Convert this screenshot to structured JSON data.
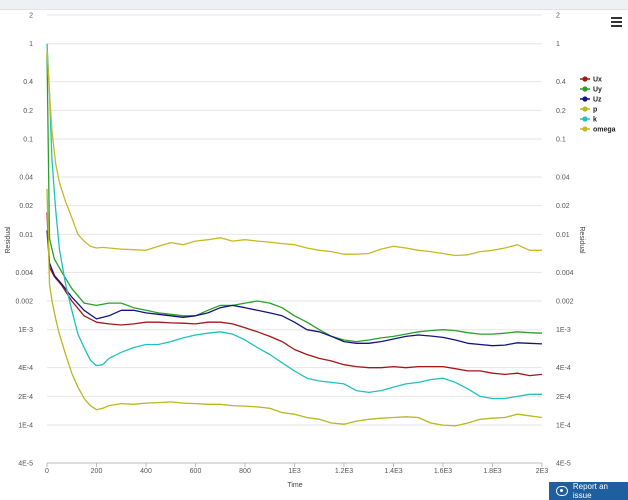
{
  "chart_data": {
    "type": "line",
    "title": "",
    "xlabel": "Time",
    "ylabel": "Residual",
    "ylabel_right": "Residual",
    "y_scale": "log",
    "xlim": [
      0,
      2000
    ],
    "ylim": [
      4e-05,
      2
    ],
    "x_ticks": [
      0,
      200,
      400,
      600,
      800,
      1000,
      1200,
      1400,
      1600,
      1800,
      2000
    ],
    "x_tick_labels": [
      "0",
      "200",
      "400",
      "600",
      "800",
      "1E3",
      "1.2E3",
      "1.4E3",
      "1.6E3",
      "1.8E3",
      "2E3"
    ],
    "y_ticks": [
      2,
      1,
      0.4,
      0.2,
      0.1,
      0.04,
      0.02,
      0.01,
      0.004,
      0.002,
      0.001,
      0.0004,
      0.0002,
      0.0001,
      4e-05
    ],
    "y_tick_labels": [
      "2",
      "1",
      "0.4",
      "0.2",
      "0.1",
      "0.04",
      "0.02",
      "0.01",
      "0.004",
      "0.002",
      "1E-3",
      "4E-4",
      "2E-4",
      "1E-4",
      "4E-5"
    ],
    "grid": "horizontal",
    "legend_position": "right",
    "series": [
      {
        "name": "Ux",
        "color": "#a01818",
        "x": [
          0,
          10,
          30,
          60,
          100,
          150,
          200,
          250,
          300,
          350,
          400,
          450,
          500,
          550,
          600,
          650,
          700,
          750,
          800,
          850,
          900,
          950,
          1000,
          1050,
          1100,
          1150,
          1200,
          1250,
          1300,
          1350,
          1400,
          1450,
          1500,
          1550,
          1600,
          1650,
          1700,
          1750,
          1800,
          1850,
          1900,
          1950,
          2000
        ],
        "y": [
          0.017,
          0.0045,
          0.0036,
          0.0029,
          0.002,
          0.0014,
          0.0012,
          0.00115,
          0.00112,
          0.00115,
          0.0012,
          0.0012,
          0.00118,
          0.00117,
          0.00115,
          0.0012,
          0.0012,
          0.00115,
          0.00105,
          0.00095,
          0.00085,
          0.00075,
          0.00062,
          0.00055,
          0.0005,
          0.00047,
          0.00043,
          0.00041,
          0.0004,
          0.0004,
          0.00041,
          0.0004,
          0.00041,
          0.00041,
          0.00041,
          0.00039,
          0.00037,
          0.00037,
          0.00035,
          0.00034,
          0.00035,
          0.00033,
          0.00034
        ]
      },
      {
        "name": "Uy",
        "color": "#2aa02a",
        "x": [
          0,
          10,
          30,
          60,
          100,
          150,
          200,
          250,
          300,
          350,
          400,
          450,
          500,
          550,
          600,
          650,
          700,
          750,
          800,
          850,
          900,
          950,
          1000,
          1050,
          1100,
          1150,
          1200,
          1250,
          1300,
          1350,
          1400,
          1450,
          1500,
          1550,
          1600,
          1650,
          1700,
          1750,
          1800,
          1850,
          1900,
          1950,
          2000
        ],
        "y": [
          0.8,
          0.009,
          0.0055,
          0.004,
          0.0027,
          0.0019,
          0.0018,
          0.0019,
          0.0019,
          0.0017,
          0.0016,
          0.0015,
          0.00145,
          0.0014,
          0.0014,
          0.0016,
          0.0018,
          0.0018,
          0.0019,
          0.002,
          0.0019,
          0.0017,
          0.0014,
          0.0012,
          0.001,
          0.00085,
          0.00078,
          0.00075,
          0.00078,
          0.00082,
          0.00085,
          0.0009,
          0.00095,
          0.00098,
          0.001,
          0.00098,
          0.00093,
          0.0009,
          0.0009,
          0.00092,
          0.00095,
          0.00093,
          0.00092
        ]
      },
      {
        "name": "Uz",
        "color": "#141480",
        "x": [
          0,
          10,
          30,
          60,
          100,
          150,
          200,
          250,
          300,
          350,
          400,
          450,
          500,
          550,
          600,
          650,
          700,
          750,
          800,
          850,
          900,
          950,
          1000,
          1050,
          1100,
          1150,
          1200,
          1250,
          1300,
          1350,
          1400,
          1450,
          1500,
          1550,
          1600,
          1650,
          1700,
          1750,
          1800,
          1850,
          1900,
          1950,
          2000
        ],
        "y": [
          0.011,
          0.005,
          0.0037,
          0.003,
          0.0022,
          0.0016,
          0.0013,
          0.0014,
          0.0016,
          0.0016,
          0.0015,
          0.00145,
          0.0014,
          0.00135,
          0.0014,
          0.0015,
          0.0017,
          0.0018,
          0.0017,
          0.0016,
          0.0015,
          0.0014,
          0.0012,
          0.001,
          0.00095,
          0.00085,
          0.00075,
          0.00072,
          0.00072,
          0.00075,
          0.0008,
          0.00085,
          0.00088,
          0.00086,
          0.00083,
          0.00078,
          0.00072,
          0.0007,
          0.00068,
          0.00069,
          0.00073,
          0.00072,
          0.00071
        ]
      },
      {
        "name": "p",
        "color": "#b8b820",
        "x": [
          0,
          10,
          20,
          35,
          50,
          75,
          100,
          125,
          150,
          175,
          200,
          225,
          250,
          300,
          350,
          400,
          450,
          500,
          550,
          600,
          650,
          700,
          750,
          800,
          850,
          900,
          950,
          1000,
          1050,
          1100,
          1150,
          1200,
          1250,
          1300,
          1350,
          1400,
          1450,
          1500,
          1550,
          1600,
          1650,
          1700,
          1750,
          1800,
          1850,
          1900,
          1950,
          2000
        ],
        "y": [
          0.03,
          0.003,
          0.002,
          0.0013,
          0.0009,
          0.00055,
          0.00035,
          0.00025,
          0.00019,
          0.00016,
          0.000145,
          0.00015,
          0.00016,
          0.000168,
          0.000165,
          0.00017,
          0.000172,
          0.000175,
          0.00017,
          0.000168,
          0.000165,
          0.000165,
          0.00016,
          0.000158,
          0.000155,
          0.00015,
          0.000135,
          0.00013,
          0.00012,
          0.000115,
          0.000105,
          0.000102,
          0.00011,
          0.000115,
          0.000118,
          0.00012,
          0.000122,
          0.00012,
          0.000105,
          0.0001,
          9.8e-05,
          0.000105,
          0.000115,
          0.000118,
          0.00012,
          0.00013,
          0.000125,
          0.00012
        ]
      },
      {
        "name": "k",
        "color": "#20c0c0",
        "x": [
          0,
          10,
          20,
          35,
          50,
          75,
          100,
          125,
          150,
          175,
          200,
          225,
          250,
          300,
          350,
          400,
          450,
          500,
          550,
          600,
          650,
          700,
          750,
          800,
          850,
          900,
          950,
          1000,
          1050,
          1100,
          1150,
          1200,
          1250,
          1300,
          1350,
          1400,
          1450,
          1500,
          1550,
          1600,
          1650,
          1700,
          1750,
          1800,
          1850,
          1900,
          1950,
          2000
        ],
        "y": [
          1,
          0.3,
          0.06,
          0.018,
          0.007,
          0.003,
          0.0016,
          0.0009,
          0.00065,
          0.00048,
          0.00042,
          0.00043,
          0.0005,
          0.00058,
          0.00065,
          0.0007,
          0.0007,
          0.00075,
          0.00082,
          0.00088,
          0.00092,
          0.00095,
          0.0009,
          0.00078,
          0.00065,
          0.00055,
          0.00045,
          0.00037,
          0.00031,
          0.00029,
          0.00028,
          0.00027,
          0.00023,
          0.00022,
          0.00023,
          0.00025,
          0.00027,
          0.00028,
          0.0003,
          0.00031,
          0.00028,
          0.00024,
          0.0002,
          0.00019,
          0.00019,
          0.0002,
          0.00021,
          0.00021
        ]
      },
      {
        "name": "omega",
        "color": "#c8b828",
        "x": [
          0,
          10,
          20,
          35,
          50,
          75,
          100,
          125,
          150,
          175,
          200,
          225,
          250,
          300,
          350,
          400,
          450,
          500,
          550,
          600,
          650,
          700,
          750,
          800,
          850,
          900,
          950,
          1000,
          1050,
          1100,
          1150,
          1200,
          1250,
          1300,
          1350,
          1400,
          1450,
          1500,
          1550,
          1600,
          1650,
          1700,
          1750,
          1800,
          1850,
          1900,
          1950,
          2000
        ],
        "y": [
          0.85,
          0.3,
          0.12,
          0.055,
          0.035,
          0.022,
          0.015,
          0.01,
          0.0085,
          0.0075,
          0.0072,
          0.0073,
          0.0072,
          0.007,
          0.0069,
          0.0068,
          0.0075,
          0.0082,
          0.0078,
          0.0085,
          0.0088,
          0.0092,
          0.0085,
          0.0088,
          0.0085,
          0.0083,
          0.008,
          0.0078,
          0.0072,
          0.0068,
          0.0066,
          0.0062,
          0.0062,
          0.0063,
          0.007,
          0.0075,
          0.0072,
          0.0068,
          0.0066,
          0.0063,
          0.006,
          0.0061,
          0.0066,
          0.0068,
          0.0072,
          0.0078,
          0.0068,
          0.0068
        ]
      }
    ]
  },
  "ui": {
    "report_button_label": "Report an issue"
  }
}
